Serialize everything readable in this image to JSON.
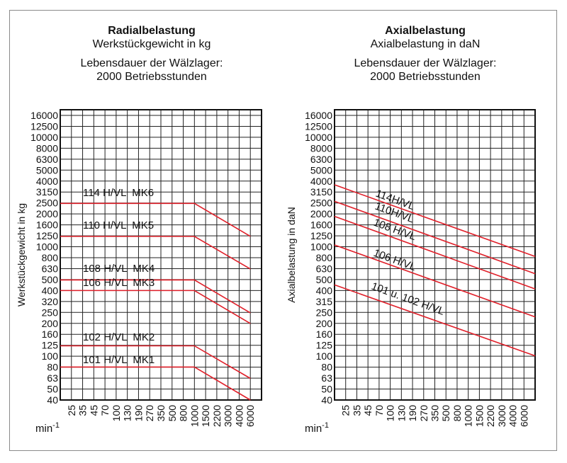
{
  "chart_data": [
    {
      "type": "line",
      "title": "Radialbelastung",
      "subtitle": "Werkstückgewicht in kg",
      "note_line1": "Lebensdauer der Wälzlager:",
      "note_line2": "2000 Betriebsstunden",
      "ylabel": "Werkstückgewicht in kg",
      "xlabel": "min",
      "xlabel_exp": "-1",
      "x_scale": "categorical (log-spaced speeds)",
      "y_scale": "log",
      "grid": true,
      "x_ticks": [
        "25",
        "35",
        "45",
        "70",
        "100",
        "130",
        "190",
        "270",
        "350",
        "500",
        "800",
        "1000",
        "1500",
        "2200",
        "3000",
        "4000",
        "6000"
      ],
      "y_ticks": [
        "16000",
        "12500",
        "10000",
        "8000",
        "6300",
        "5000",
        "4000",
        "3150",
        "2500",
        "2000",
        "1600",
        "1250",
        "1000",
        "800",
        "630",
        "500",
        "400",
        "320",
        "250",
        "200",
        "160",
        "125",
        "100",
        "80",
        "63",
        "50",
        "40"
      ],
      "ylim": [
        40,
        16000
      ],
      "line_color": "#e0202a",
      "series": [
        {
          "name": "114 H/VL  MK6",
          "points": [
            [
              "25",
              2500
            ],
            [
              "1000",
              2500
            ],
            [
              "6000",
              1250
            ]
          ]
        },
        {
          "name": "110 H/VL  MK5",
          "points": [
            [
              "25",
              1250
            ],
            [
              "1000",
              1250
            ],
            [
              "6000",
              630
            ]
          ]
        },
        {
          "name": "108 H/VL  MK4",
          "points": [
            [
              "25",
              500
            ],
            [
              "1000",
              500
            ],
            [
              "6000",
              250
            ]
          ]
        },
        {
          "name": "106 H/VL  MK3",
          "points": [
            [
              "25",
              400
            ],
            [
              "1000",
              400
            ],
            [
              "6000",
              200
            ]
          ]
        },
        {
          "name": "102 H/VL  MK2",
          "points": [
            [
              "25",
              125
            ],
            [
              "1000",
              125
            ],
            [
              "6000",
              63
            ]
          ]
        },
        {
          "name": "101 H/VL  MK1",
          "points": [
            [
              "25",
              80
            ],
            [
              "1000",
              80
            ],
            [
              "6000",
              40
            ]
          ]
        }
      ]
    },
    {
      "type": "line",
      "title": "Axialbelastung",
      "subtitle": "Axialbelastung in daN",
      "note_line1": "Lebensdauer der Wälzlager:",
      "note_line2": "2000 Betriebsstunden",
      "ylabel": "Axialbelastung in daN",
      "xlabel": "min",
      "xlabel_exp": "-1",
      "x_scale": "categorical (log-spaced speeds)",
      "y_scale": "log",
      "grid": true,
      "x_ticks": [
        "25",
        "35",
        "45",
        "70",
        "100",
        "130",
        "190",
        "270",
        "350",
        "500",
        "800",
        "1000",
        "1500",
        "2200",
        "3000",
        "4000",
        "6000"
      ],
      "y_ticks": [
        "16000",
        "12500",
        "10000",
        "8000",
        "6300",
        "5000",
        "4000",
        "3150",
        "2500",
        "2000",
        "1600",
        "1250",
        "1000",
        "800",
        "630",
        "500",
        "400",
        "315",
        "250",
        "200",
        "160",
        "125",
        "100",
        "80",
        "63",
        "50",
        "40"
      ],
      "ylim": [
        40,
        16000
      ],
      "line_color": "#e0202a",
      "series": [
        {
          "name": "114H/VL",
          "points": [
            [
              "25",
              3400
            ],
            [
              "6000",
              890
            ]
          ]
        },
        {
          "name": "110H/VL",
          "points": [
            [
              "25",
              2400
            ],
            [
              "6000",
              620
            ]
          ]
        },
        {
          "name": "108 H/VL",
          "points": [
            [
              "25",
              1750
            ],
            [
              "6000",
              450
            ]
          ]
        },
        {
          "name": "106 H/VL",
          "points": [
            [
              "25",
              960
            ],
            [
              "6000",
              250
            ]
          ]
        },
        {
          "name": "101 u. 102 H/VL",
          "points": [
            [
              "25",
              415
            ],
            [
              "6000",
              110
            ]
          ]
        }
      ]
    }
  ]
}
